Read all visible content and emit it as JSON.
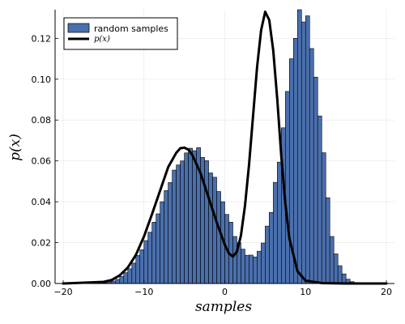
{
  "chart_data": {
    "type": "bar",
    "xlabel": "samples",
    "ylabel": "p(x)",
    "xlim": [
      -21,
      21
    ],
    "ylim": [
      0,
      0.134
    ],
    "x_ticks": [
      -20,
      -10,
      0,
      10,
      20
    ],
    "x_tick_labels": [
      "−20",
      "−10",
      "0",
      "10",
      "20"
    ],
    "y_ticks": [
      0,
      0.02,
      0.04,
      0.06,
      0.08,
      0.1,
      0.12
    ],
    "y_tick_labels": [
      "0.00",
      "0.02",
      "0.04",
      "0.06",
      "0.08",
      "0.10",
      "0.12"
    ],
    "grid": true,
    "legend_position": "top-left",
    "bar_color": "#4a6fad",
    "curve_color": "#000000",
    "series": [
      {
        "name": "random samples",
        "kind": "histogram",
        "bin_width": 0.5,
        "bin_start": -15,
        "values": [
          0.0003,
          0.0008,
          0.0012,
          0.002,
          0.0035,
          0.0053,
          0.0072,
          0.01,
          0.0137,
          0.0165,
          0.021,
          0.0251,
          0.03,
          0.0341,
          0.04,
          0.0455,
          0.0494,
          0.0555,
          0.058,
          0.06,
          0.0639,
          0.0662,
          0.065,
          0.0665,
          0.0617,
          0.0601,
          0.0541,
          0.052,
          0.045,
          0.04,
          0.0338,
          0.03,
          0.023,
          0.02,
          0.0168,
          0.0138,
          0.0139,
          0.013,
          0.0158,
          0.0198,
          0.0281,
          0.0348,
          0.0495,
          0.0594,
          0.0762,
          0.094,
          0.11,
          0.12,
          0.134,
          0.128,
          0.131,
          0.115,
          0.101,
          0.082,
          0.064,
          0.042,
          0.023,
          0.0145,
          0.0087,
          0.0047,
          0.0021,
          0.0009,
          0.0005
        ]
      },
      {
        "name": "p(x)",
        "kind": "line",
        "x": [
          -20,
          -15,
          -14,
          -13,
          -12,
          -11,
          -10,
          -9,
          -8,
          -7,
          -6,
          -5.5,
          -5,
          -4.5,
          -4,
          -3,
          -2,
          -1,
          0,
          0.5,
          1,
          1.5,
          2,
          2.5,
          3,
          3.5,
          4,
          4.5,
          5,
          5.5,
          6,
          6.5,
          7,
          7.5,
          8,
          9,
          10,
          12,
          15,
          20
        ],
        "y": [
          0,
          0.0008,
          0.0017,
          0.004,
          0.0078,
          0.014,
          0.023,
          0.034,
          0.0455,
          0.057,
          0.064,
          0.0662,
          0.0665,
          0.0655,
          0.0628,
          0.054,
          0.042,
          0.03,
          0.019,
          0.0148,
          0.0132,
          0.0155,
          0.0235,
          0.038,
          0.058,
          0.082,
          0.106,
          0.124,
          0.133,
          0.129,
          0.114,
          0.09,
          0.062,
          0.039,
          0.022,
          0.006,
          0.0014,
          0.0002,
          0,
          0
        ]
      }
    ]
  }
}
